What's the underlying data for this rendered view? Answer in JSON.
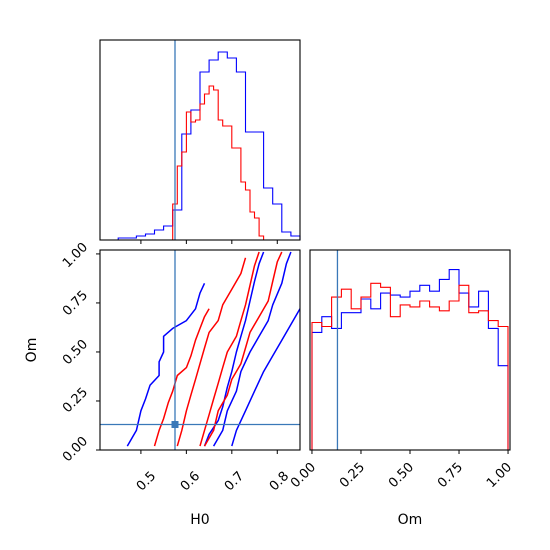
{
  "chart_data": [
    {
      "panel": "H0-marginal",
      "type": "histogram",
      "xlim": [
        0.41,
        0.85
      ],
      "xticks": [
        0.5,
        0.6,
        0.7,
        0.8
      ],
      "truth": 0.575,
      "series": [
        {
          "color": "#0000ff",
          "bin_edges": [
            0.41,
            0.43,
            0.45,
            0.47,
            0.49,
            0.51,
            0.53,
            0.55,
            0.57,
            0.59,
            0.61,
            0.63,
            0.65,
            0.67,
            0.69,
            0.71,
            0.73,
            0.75,
            0.77,
            0.79,
            0.81,
            0.83,
            0.85
          ],
          "counts": [
            0,
            0,
            0.01,
            0.01,
            0.02,
            0.03,
            0.05,
            0.07,
            0.15,
            0.53,
            0.65,
            0.84,
            0.9,
            0.94,
            0.91,
            0.84,
            0.54,
            0.54,
            0.26,
            0.18,
            0.04,
            0.02
          ]
        },
        {
          "color": "#ff0000",
          "bin_edges": [
            0.57,
            0.58,
            0.59,
            0.6,
            0.61,
            0.62,
            0.63,
            0.64,
            0.65,
            0.66,
            0.67,
            0.68,
            0.69,
            0.7,
            0.71,
            0.72,
            0.73,
            0.74,
            0.75,
            0.76,
            0.77
          ],
          "counts": [
            0.18,
            0.37,
            0.44,
            0.64,
            0.59,
            0.6,
            0.68,
            0.73,
            0.77,
            0.75,
            0.6,
            0.57,
            0.57,
            0.46,
            0.46,
            0.29,
            0.25,
            0.14,
            0.11,
            0.02
          ]
        }
      ]
    },
    {
      "panel": "H0-Om-joint",
      "type": "contour",
      "xlabel": "H0",
      "ylabel": "Om",
      "xlim": [
        0.41,
        0.85
      ],
      "ylim": [
        0.0,
        1.02
      ],
      "xticks": [
        0.5,
        0.6,
        0.7,
        0.8
      ],
      "xtick_labels": [
        "0.5",
        "0.6",
        "0.7",
        "0.8"
      ],
      "yticks": [
        0.0,
        0.25,
        0.5,
        0.75,
        1.0
      ],
      "ytick_labels": [
        "0.00",
        "0.25",
        "0.50",
        "0.75",
        "1.00"
      ],
      "truth": [
        0.575,
        0.13
      ],
      "series": [
        {
          "color": "#0000ff",
          "contours": [
            [
              [
                0.47,
                0.02
              ],
              [
                0.49,
                0.1
              ],
              [
                0.5,
                0.2
              ],
              [
                0.51,
                0.26
              ],
              [
                0.52,
                0.33
              ],
              [
                0.54,
                0.38
              ],
              [
                0.54,
                0.45
              ],
              [
                0.55,
                0.5
              ],
              [
                0.55,
                0.58
              ],
              [
                0.57,
                0.62
              ],
              [
                0.6,
                0.66
              ],
              [
                0.62,
                0.72
              ],
              [
                0.63,
                0.8
              ],
              [
                0.64,
                0.85
              ]
            ],
            [
              [
                0.64,
                0.02
              ],
              [
                0.65,
                0.08
              ],
              [
                0.67,
                0.15
              ],
              [
                0.68,
                0.22
              ],
              [
                0.69,
                0.32
              ],
              [
                0.7,
                0.4
              ],
              [
                0.71,
                0.5
              ],
              [
                0.72,
                0.58
              ],
              [
                0.73,
                0.66
              ],
              [
                0.74,
                0.76
              ],
              [
                0.75,
                0.86
              ],
              [
                0.76,
                0.95
              ],
              [
                0.77,
                1.01
              ]
            ],
            [
              [
                0.66,
                0.02
              ],
              [
                0.68,
                0.1
              ],
              [
                0.69,
                0.2
              ],
              [
                0.71,
                0.3
              ],
              [
                0.72,
                0.4
              ],
              [
                0.74,
                0.5
              ],
              [
                0.76,
                0.58
              ],
              [
                0.78,
                0.66
              ],
              [
                0.79,
                0.74
              ],
              [
                0.81,
                0.85
              ],
              [
                0.82,
                0.95
              ],
              [
                0.83,
                1.01
              ]
            ],
            [
              [
                0.7,
                0.02
              ],
              [
                0.71,
                0.1
              ],
              [
                0.73,
                0.2
              ],
              [
                0.75,
                0.3
              ],
              [
                0.77,
                0.4
              ],
              [
                0.79,
                0.48
              ],
              [
                0.81,
                0.56
              ],
              [
                0.83,
                0.64
              ],
              [
                0.85,
                0.72
              ]
            ]
          ]
        },
        {
          "color": "#ff0000",
          "contours": [
            [
              [
                0.53,
                0.02
              ],
              [
                0.54,
                0.1
              ],
              [
                0.55,
                0.16
              ],
              [
                0.56,
                0.24
              ],
              [
                0.57,
                0.3
              ],
              [
                0.58,
                0.38
              ],
              [
                0.6,
                0.42
              ],
              [
                0.61,
                0.48
              ],
              [
                0.62,
                0.56
              ],
              [
                0.63,
                0.62
              ],
              [
                0.64,
                0.68
              ],
              [
                0.65,
                0.72
              ]
            ],
            [
              [
                0.58,
                0.02
              ],
              [
                0.59,
                0.1
              ],
              [
                0.6,
                0.2
              ],
              [
                0.61,
                0.28
              ],
              [
                0.62,
                0.36
              ],
              [
                0.63,
                0.44
              ],
              [
                0.64,
                0.52
              ],
              [
                0.65,
                0.6
              ],
              [
                0.67,
                0.66
              ],
              [
                0.68,
                0.74
              ],
              [
                0.7,
                0.82
              ],
              [
                0.72,
                0.9
              ],
              [
                0.73,
                0.98
              ]
            ],
            [
              [
                0.63,
                0.02
              ],
              [
                0.64,
                0.1
              ],
              [
                0.65,
                0.18
              ],
              [
                0.66,
                0.26
              ],
              [
                0.67,
                0.34
              ],
              [
                0.68,
                0.42
              ],
              [
                0.69,
                0.5
              ],
              [
                0.71,
                0.58
              ],
              [
                0.72,
                0.66
              ],
              [
                0.73,
                0.74
              ],
              [
                0.74,
                0.84
              ],
              [
                0.75,
                0.94
              ],
              [
                0.76,
                1.01
              ]
            ],
            [
              [
                0.64,
                0.02
              ],
              [
                0.66,
                0.1
              ],
              [
                0.67,
                0.2
              ],
              [
                0.69,
                0.28
              ],
              [
                0.7,
                0.36
              ],
              [
                0.72,
                0.44
              ],
              [
                0.73,
                0.52
              ],
              [
                0.74,
                0.6
              ],
              [
                0.76,
                0.68
              ],
              [
                0.78,
                0.76
              ],
              [
                0.79,
                0.86
              ],
              [
                0.8,
                0.96
              ],
              [
                0.81,
                1.01
              ]
            ]
          ]
        }
      ]
    },
    {
      "panel": "Om-marginal",
      "type": "histogram",
      "xlabel": "Om",
      "xlim": [
        -0.01,
        1.01
      ],
      "xticks": [
        0.0,
        0.25,
        0.5,
        0.75,
        1.0
      ],
      "xtick_labels": [
        "0.00",
        "0.25",
        "0.50",
        "0.75",
        "1.00"
      ],
      "truth": 0.13,
      "series": [
        {
          "color": "#0000ff",
          "bin_edges": [
            0.0,
            0.05,
            0.1,
            0.15,
            0.2,
            0.25,
            0.3,
            0.35,
            0.4,
            0.45,
            0.5,
            0.55,
            0.6,
            0.65,
            0.7,
            0.75,
            0.8,
            0.85,
            0.9,
            0.95,
            1.0
          ],
          "counts": [
            0.6,
            0.68,
            0.62,
            0.7,
            0.7,
            0.77,
            0.72,
            0.8,
            0.79,
            0.78,
            0.81,
            0.84,
            0.81,
            0.87,
            0.92,
            0.8,
            0.73,
            0.81,
            0.62,
            0.43
          ]
        },
        {
          "color": "#ff0000",
          "bin_edges": [
            0.0,
            0.05,
            0.1,
            0.15,
            0.2,
            0.25,
            0.3,
            0.35,
            0.4,
            0.45,
            0.5,
            0.55,
            0.6,
            0.65,
            0.7,
            0.75,
            0.8,
            0.85,
            0.9,
            0.95,
            1.0
          ],
          "counts": [
            0.65,
            0.63,
            0.78,
            0.82,
            0.72,
            0.78,
            0.85,
            0.83,
            0.68,
            0.74,
            0.73,
            0.76,
            0.73,
            0.71,
            0.76,
            0.84,
            0.7,
            0.71,
            0.66,
            0.63
          ]
        }
      ]
    }
  ]
}
